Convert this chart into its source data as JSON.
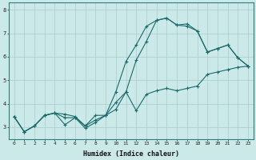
{
  "xlabel": "Humidex (Indice chaleur)",
  "bg_color": "#cce9e9",
  "grid_color": "#aacccc",
  "line_color": "#1a6b6b",
  "xlim": [
    -0.5,
    23.5
  ],
  "ylim": [
    2.5,
    8.3
  ],
  "yticks": [
    3,
    4,
    5,
    6,
    7,
    8
  ],
  "xticks": [
    0,
    1,
    2,
    3,
    4,
    5,
    6,
    7,
    8,
    9,
    10,
    11,
    12,
    13,
    14,
    15,
    16,
    17,
    18,
    19,
    20,
    21,
    22,
    23
  ],
  "series1_x": [
    0,
    1,
    2,
    3,
    4,
    5,
    6,
    7,
    8,
    9,
    10,
    11,
    12,
    13,
    14,
    15,
    16,
    17,
    18,
    19,
    20,
    21,
    22,
    23
  ],
  "series1_y": [
    3.45,
    2.8,
    3.05,
    3.5,
    3.6,
    3.55,
    3.45,
    3.05,
    3.3,
    3.5,
    4.05,
    4.5,
    5.85,
    6.65,
    7.55,
    7.65,
    7.35,
    7.4,
    7.1,
    6.2,
    6.35,
    6.5,
    5.95,
    5.6
  ],
  "series2_x": [
    0,
    1,
    2,
    3,
    4,
    5,
    6,
    7,
    8,
    9,
    10,
    11,
    12,
    13,
    14,
    15,
    16,
    17,
    18,
    19,
    20,
    21,
    22,
    23
  ],
  "series2_y": [
    3.45,
    2.8,
    3.05,
    3.5,
    3.6,
    3.1,
    3.4,
    2.95,
    3.2,
    3.5,
    3.75,
    4.5,
    3.7,
    4.4,
    4.55,
    4.65,
    4.55,
    4.65,
    4.75,
    5.25,
    5.35,
    5.45,
    5.55,
    5.6
  ],
  "series3_x": [
    0,
    1,
    2,
    3,
    4,
    5,
    6,
    7,
    8,
    9,
    10,
    11,
    12,
    13,
    14,
    15,
    16,
    17,
    18,
    19,
    20,
    21,
    22,
    23
  ],
  "series3_y": [
    3.45,
    2.8,
    3.05,
    3.5,
    3.6,
    3.4,
    3.4,
    3.05,
    3.5,
    3.5,
    4.5,
    5.8,
    6.5,
    7.3,
    7.55,
    7.65,
    7.35,
    7.3,
    7.1,
    6.2,
    6.35,
    6.5,
    5.95,
    5.6
  ]
}
